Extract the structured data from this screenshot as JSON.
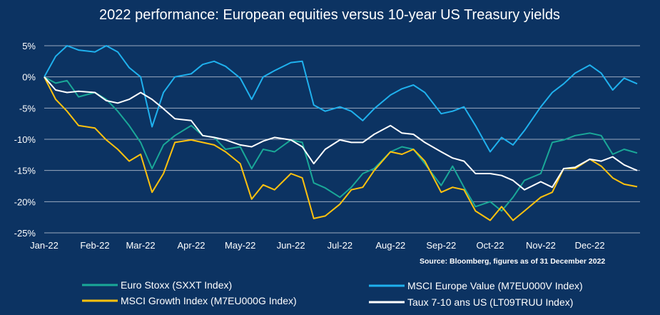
{
  "chart_data": {
    "type": "line",
    "title": "2022 performance: European equities versus 10-year US Treasury yields",
    "source": "Source: Bloomberg, figures as of 31 December 2022",
    "xlim": [
      "2022-01-01",
      "2022-12-30"
    ],
    "ylim": [
      -25,
      5
    ],
    "y_ticks": [
      5,
      0,
      -5,
      -10,
      -15,
      -20,
      -25
    ],
    "y_tick_labels": [
      "5%",
      "0%",
      "-5%",
      "-10%",
      "-15%",
      "-20%",
      "-25%"
    ],
    "x_ticks": [
      "2022-01-01",
      "2022-02-01",
      "2022-03-01",
      "2022-04-01",
      "2022-05-01",
      "2022-06-01",
      "2022-07-01",
      "2022-08-01",
      "2022-09-01",
      "2022-10-01",
      "2022-11-01",
      "2022-12-01"
    ],
    "x_tick_labels": [
      "Jan-22",
      "Feb-22",
      "Mar-22",
      "Apr-22",
      "May-22",
      "Jun-22",
      "Jul-22",
      "Aug-22",
      "Sep-22",
      "Oct-22",
      "Nov-22",
      "Dec-22"
    ],
    "grid": "horizontal",
    "legend_placement": "bottom",
    "x": [
      "2022-01-01",
      "2022-01-08",
      "2022-01-15",
      "2022-01-22",
      "2022-02-01",
      "2022-02-08",
      "2022-02-15",
      "2022-02-22",
      "2022-03-01",
      "2022-03-08",
      "2022-03-15",
      "2022-03-22",
      "2022-04-01",
      "2022-04-08",
      "2022-04-15",
      "2022-04-22",
      "2022-05-01",
      "2022-05-08",
      "2022-05-15",
      "2022-05-22",
      "2022-06-01",
      "2022-06-08",
      "2022-06-15",
      "2022-06-22",
      "2022-07-01",
      "2022-07-08",
      "2022-07-15",
      "2022-07-22",
      "2022-08-01",
      "2022-08-08",
      "2022-08-15",
      "2022-08-22",
      "2022-09-01",
      "2022-09-08",
      "2022-09-15",
      "2022-09-22",
      "2022-10-01",
      "2022-10-08",
      "2022-10-15",
      "2022-10-22",
      "2022-11-01",
      "2022-11-08",
      "2022-11-15",
      "2022-11-22",
      "2022-12-01",
      "2022-12-08",
      "2022-12-15",
      "2022-12-22",
      "2022-12-30"
    ],
    "series": [
      {
        "name": "Euro Stoxx (SXXT Index)",
        "color": "#1aa898",
        "values": [
          0,
          -1,
          -0.6,
          -3.2,
          -2.5,
          -3.6,
          -5.5,
          -7.8,
          -10.5,
          -14.7,
          -10.9,
          -9.4,
          -7.8,
          -9.4,
          -9.7,
          -11.6,
          -11.2,
          -14.7,
          -11.6,
          -12,
          -10.1,
          -10.5,
          -17,
          -17.8,
          -19.3,
          -17.7,
          -15.5,
          -14.7,
          -12,
          -11.2,
          -11.6,
          -13.9,
          -17.4,
          -14.3,
          -17.7,
          -20.8,
          -20,
          -21.5,
          -19.3,
          -16.6,
          -15.5,
          -10.5,
          -10.1,
          -9.4,
          -9,
          -9.4,
          -12.4,
          -11.6,
          -12.2
        ]
      },
      {
        "name": "MSCI Europe Value (M7EU000V Index)",
        "color": "#1fb1ee",
        "values": [
          0,
          3.3,
          5,
          4.3,
          4,
          5,
          4,
          1.5,
          0,
          -8,
          -2.5,
          0,
          0.5,
          2,
          2.5,
          1.7,
          -0.2,
          -3.6,
          0,
          1,
          2.3,
          2.5,
          -4.5,
          -5.5,
          -4.8,
          -5.5,
          -7,
          -5.1,
          -2.9,
          -1.9,
          -1.3,
          -2.5,
          -5.9,
          -5.5,
          -4.8,
          -7.8,
          -12,
          -9.7,
          -10.9,
          -8.6,
          -4.8,
          -2.5,
          -1.1,
          0.6,
          1.9,
          0.6,
          -2.1,
          -0.2,
          -1.1
        ]
      },
      {
        "name": "MSCI Growth Index (M7EU000G Index)",
        "color": "#ffc20e",
        "values": [
          0,
          -3.6,
          -5.5,
          -7.8,
          -8.2,
          -10.1,
          -11.6,
          -13.5,
          -12.4,
          -18.5,
          -15.5,
          -10.5,
          -10.1,
          -10.5,
          -10.9,
          -12,
          -13.9,
          -19.6,
          -17.3,
          -18.1,
          -15.5,
          -16.2,
          -22.7,
          -22.3,
          -20.4,
          -18.1,
          -17.7,
          -15,
          -12,
          -12.4,
          -11.6,
          -13.5,
          -18.5,
          -17.7,
          -18.1,
          -21.5,
          -23,
          -20.8,
          -23,
          -21.5,
          -19.3,
          -18.5,
          -14.7,
          -14.7,
          -13.2,
          -14.3,
          -16.2,
          -17.2,
          -17.6
        ]
      },
      {
        "name": "Taux 7-10 ans US (LT09TRUU Index)",
        "color": "#ffffff",
        "values": [
          0,
          -2.1,
          -2.5,
          -2.3,
          -2.5,
          -3.8,
          -4.2,
          -3.6,
          -2.5,
          -3.6,
          -5.1,
          -6.7,
          -7,
          -9.4,
          -9.7,
          -10.1,
          -10.9,
          -11.2,
          -10.3,
          -9.7,
          -10.1,
          -11.2,
          -13.9,
          -11.6,
          -10.1,
          -10.5,
          -10.5,
          -9.2,
          -7.8,
          -9,
          -9.2,
          -10.5,
          -12,
          -13,
          -13.5,
          -15.5,
          -15.5,
          -15.8,
          -16.6,
          -18.1,
          -16.8,
          -17.7,
          -14.7,
          -14.5,
          -13.2,
          -13.5,
          -12.8,
          -14.1,
          -15
        ]
      }
    ]
  }
}
